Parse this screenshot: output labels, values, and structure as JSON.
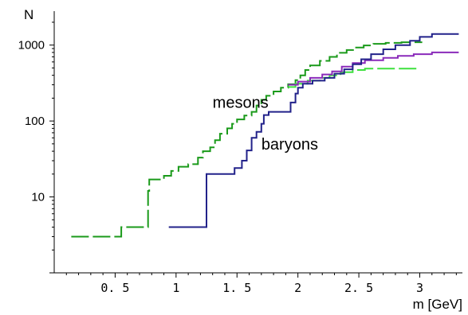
{
  "chart_data": {
    "type": "line",
    "x_scale": "linear",
    "y_scale": "log",
    "xlim": [
      0,
      3.35
    ],
    "ylim": [
      1,
      2800
    ],
    "ylabel": "N",
    "xlabel": "m [GeV]",
    "x_ticks": [
      0.5,
      1,
      1.5,
      2,
      2.5,
      3
    ],
    "x_tick_labels": [
      "0. 5",
      "1",
      "1. 5",
      "2",
      "2. 5",
      "3"
    ],
    "y_ticks": [
      10,
      100,
      1000
    ],
    "y_tick_labels": [
      "10",
      "100",
      "1000"
    ],
    "annotations": [
      {
        "text": "mesons",
        "x": 1.3,
        "y": 150
      },
      {
        "text": "baryons",
        "x": 1.7,
        "y": 42
      }
    ],
    "colors": {
      "mesons_dark": "#1a9a1a",
      "mesons_light": "#3ee03e",
      "baryons_dark": "#22228a",
      "baryons_light": "#8a2aba"
    },
    "series": [
      {
        "style": "dashed",
        "color": "#1a9a1a",
        "points": [
          [
            0.14,
            3
          ],
          [
            0.55,
            3
          ],
          [
            0.55,
            4
          ],
          [
            0.77,
            4
          ],
          [
            0.77,
            12
          ],
          [
            0.78,
            12
          ],
          [
            0.78,
            17
          ],
          [
            0.9,
            17
          ],
          [
            0.9,
            19
          ],
          [
            0.96,
            19
          ],
          [
            0.96,
            22
          ],
          [
            1.02,
            22
          ],
          [
            1.02,
            25
          ],
          [
            1.1,
            25
          ],
          [
            1.1,
            27
          ],
          [
            1.18,
            27
          ],
          [
            1.18,
            33
          ],
          [
            1.22,
            33
          ],
          [
            1.22,
            40
          ],
          [
            1.28,
            40
          ],
          [
            1.28,
            45
          ],
          [
            1.32,
            45
          ],
          [
            1.32,
            56
          ],
          [
            1.36,
            56
          ],
          [
            1.36,
            68
          ],
          [
            1.42,
            68
          ],
          [
            1.42,
            80
          ],
          [
            1.46,
            80
          ],
          [
            1.46,
            92
          ],
          [
            1.5,
            92
          ],
          [
            1.5,
            105
          ],
          [
            1.56,
            105
          ],
          [
            1.56,
            118
          ],
          [
            1.62,
            118
          ],
          [
            1.62,
            132
          ],
          [
            1.66,
            132
          ],
          [
            1.66,
            160
          ],
          [
            1.7,
            160
          ],
          [
            1.7,
            190
          ],
          [
            1.74,
            190
          ],
          [
            1.74,
            215
          ],
          [
            1.8,
            215
          ],
          [
            1.8,
            245
          ],
          [
            1.86,
            245
          ],
          [
            1.86,
            275
          ],
          [
            1.92,
            275
          ],
          [
            1.92,
            305
          ],
          [
            1.98,
            305
          ],
          [
            1.98,
            345
          ],
          [
            2.02,
            345
          ],
          [
            2.02,
            400
          ],
          [
            2.06,
            400
          ],
          [
            2.06,
            470
          ],
          [
            2.1,
            470
          ],
          [
            2.1,
            540
          ],
          [
            2.18,
            540
          ],
          [
            2.18,
            620
          ],
          [
            2.26,
            620
          ],
          [
            2.26,
            700
          ],
          [
            2.32,
            700
          ],
          [
            2.32,
            790
          ],
          [
            2.4,
            790
          ],
          [
            2.4,
            860
          ],
          [
            2.46,
            860
          ],
          [
            2.46,
            930
          ],
          [
            2.54,
            930
          ],
          [
            2.54,
            990
          ],
          [
            2.62,
            990
          ],
          [
            2.62,
            1040
          ],
          [
            2.72,
            1040
          ],
          [
            2.72,
            1070
          ],
          [
            2.85,
            1070
          ],
          [
            2.85,
            1090
          ],
          [
            3.02,
            1090
          ]
        ]
      },
      {
        "style": "dashed",
        "color": "#3ee03e",
        "points": [
          [
            1.92,
            280
          ],
          [
            1.98,
            280
          ],
          [
            1.98,
            310
          ],
          [
            2.08,
            310
          ],
          [
            2.08,
            340
          ],
          [
            2.18,
            340
          ],
          [
            2.18,
            370
          ],
          [
            2.26,
            370
          ],
          [
            2.26,
            400
          ],
          [
            2.35,
            400
          ],
          [
            2.35,
            440
          ],
          [
            2.45,
            440
          ],
          [
            2.45,
            470
          ],
          [
            2.55,
            470
          ],
          [
            2.55,
            490
          ],
          [
            3.0,
            490
          ]
        ]
      },
      {
        "style": "solid",
        "color": "#8a2aba",
        "points": [
          [
            1.92,
            300
          ],
          [
            2.0,
            300
          ],
          [
            2.0,
            330
          ],
          [
            2.1,
            330
          ],
          [
            2.1,
            370
          ],
          [
            2.2,
            370
          ],
          [
            2.2,
            410
          ],
          [
            2.28,
            410
          ],
          [
            2.28,
            450
          ],
          [
            2.36,
            450
          ],
          [
            2.36,
            520
          ],
          [
            2.45,
            520
          ],
          [
            2.45,
            580
          ],
          [
            2.55,
            580
          ],
          [
            2.55,
            630
          ],
          [
            2.7,
            630
          ],
          [
            2.7,
            680
          ],
          [
            2.82,
            680
          ],
          [
            2.82,
            720
          ],
          [
            2.95,
            720
          ],
          [
            2.95,
            760
          ],
          [
            3.1,
            760
          ],
          [
            3.1,
            800
          ],
          [
            3.32,
            800
          ]
        ]
      },
      {
        "style": "solid",
        "color": "#22228a",
        "points": [
          [
            0.94,
            4
          ],
          [
            1.25,
            4
          ],
          [
            1.25,
            20
          ],
          [
            1.48,
            20
          ],
          [
            1.48,
            24
          ],
          [
            1.54,
            24
          ],
          [
            1.54,
            30
          ],
          [
            1.58,
            30
          ],
          [
            1.58,
            41
          ],
          [
            1.62,
            41
          ],
          [
            1.62,
            60
          ],
          [
            1.66,
            60
          ],
          [
            1.66,
            72
          ],
          [
            1.7,
            72
          ],
          [
            1.7,
            92
          ],
          [
            1.72,
            92
          ],
          [
            1.72,
            120
          ],
          [
            1.76,
            120
          ],
          [
            1.76,
            132
          ],
          [
            1.94,
            132
          ],
          [
            1.94,
            175
          ],
          [
            1.98,
            175
          ],
          [
            1.98,
            230
          ],
          [
            2.0,
            230
          ],
          [
            2.0,
            275
          ],
          [
            2.04,
            275
          ],
          [
            2.04,
            310
          ],
          [
            2.12,
            310
          ],
          [
            2.12,
            340
          ],
          [
            2.22,
            340
          ],
          [
            2.22,
            370
          ],
          [
            2.3,
            370
          ],
          [
            2.3,
            420
          ],
          [
            2.38,
            420
          ],
          [
            2.38,
            480
          ],
          [
            2.45,
            480
          ],
          [
            2.45,
            560
          ],
          [
            2.52,
            560
          ],
          [
            2.52,
            650
          ],
          [
            2.6,
            650
          ],
          [
            2.6,
            760
          ],
          [
            2.7,
            760
          ],
          [
            2.7,
            880
          ],
          [
            2.8,
            880
          ],
          [
            2.8,
            1000
          ],
          [
            2.92,
            1000
          ],
          [
            2.92,
            1140
          ],
          [
            3.0,
            1140
          ],
          [
            3.0,
            1280
          ],
          [
            3.1,
            1280
          ],
          [
            3.1,
            1400
          ],
          [
            3.32,
            1400
          ]
        ]
      }
    ]
  }
}
